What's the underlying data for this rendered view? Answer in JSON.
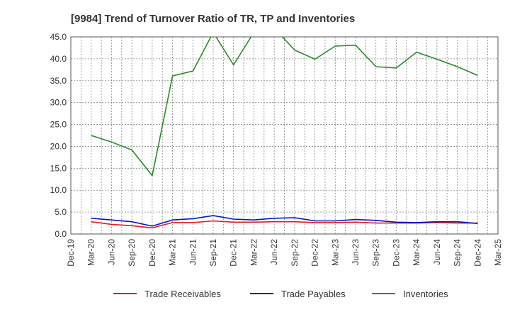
{
  "chart_data": {
    "type": "line",
    "title": "[9984]  Trend of Turnover Ratio of TR, TP and Inventories",
    "xlabel": "",
    "ylabel": "",
    "ylim": [
      0,
      45
    ],
    "yticks": [
      "0.0",
      "5.0",
      "10.0",
      "15.0",
      "20.0",
      "25.0",
      "30.0",
      "35.0",
      "40.0",
      "45.0"
    ],
    "x_tick_labels": [
      "Dec-19",
      "Mar-20",
      "Jun-20",
      "Sep-20",
      "Dec-20",
      "Mar-21",
      "Jun-21",
      "Sep-21",
      "Dec-21",
      "Mar-22",
      "Jun-22",
      "Sep-22",
      "Dec-22",
      "Mar-23",
      "Jun-23",
      "Sep-23",
      "Dec-23",
      "Mar-24",
      "Jun-24",
      "Sep-24",
      "Dec-24",
      "Mar-25"
    ],
    "x": [
      "Mar-20",
      "Jun-20",
      "Sep-20",
      "Dec-20",
      "Mar-21",
      "Jun-21",
      "Sep-21",
      "Dec-21",
      "Mar-22",
      "Jun-22",
      "Sep-22",
      "Dec-22",
      "Mar-23",
      "Jun-23",
      "Sep-23",
      "Dec-23",
      "Mar-24",
      "Jun-24",
      "Sep-24",
      "Dec-24"
    ],
    "grid": true,
    "legend_position": "bottom",
    "series": [
      {
        "name": "Trade Receivables",
        "color": "#e8191c",
        "values": [
          2.8,
          2.2,
          1.9,
          1.4,
          2.6,
          2.6,
          3.0,
          2.7,
          2.7,
          2.8,
          2.8,
          2.6,
          2.6,
          2.7,
          2.5,
          2.5,
          2.5,
          2.6,
          2.5,
          2.5
        ]
      },
      {
        "name": "Trade Payables",
        "color": "#0a14c8",
        "values": [
          3.6,
          3.2,
          2.8,
          1.8,
          3.2,
          3.5,
          4.2,
          3.4,
          3.2,
          3.6,
          3.7,
          3.0,
          3.0,
          3.3,
          3.1,
          2.7,
          2.6,
          2.8,
          2.8,
          2.4
        ]
      },
      {
        "name": "Inventories",
        "color": "#2a8a2a",
        "values": [
          22.5,
          21.0,
          19.2,
          13.3,
          36.1,
          37.2,
          46.0,
          38.6,
          46.0,
          47.0,
          42.0,
          39.9,
          42.9,
          43.1,
          38.2,
          37.9,
          41.5,
          39.9,
          38.2,
          36.2
        ]
      }
    ]
  }
}
